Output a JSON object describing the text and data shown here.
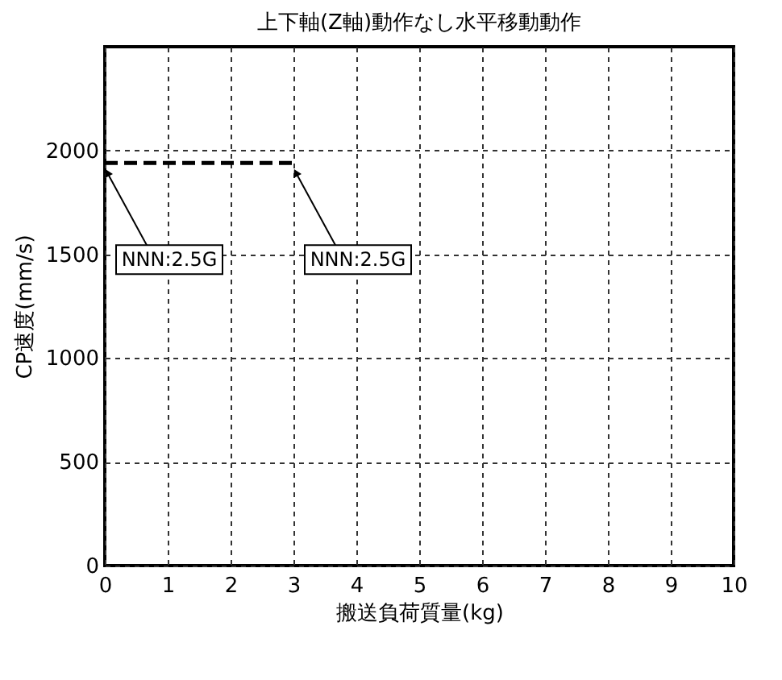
{
  "chart_data": {
    "type": "line",
    "title": "上下軸(Z軸)動作なし水平移動動作",
    "xlabel": "搬送負荷質量(kg)",
    "ylabel": "CP速度(mm/s)",
    "x": [
      0,
      3
    ],
    "series": [
      {
        "color": "#000000",
        "values": [
          1940,
          1940
        ],
        "line_style": "dashed"
      }
    ],
    "xlim": [
      0,
      10
    ],
    "xticks": [
      0,
      1,
      2,
      3,
      4,
      5,
      6,
      7,
      8,
      9,
      10
    ],
    "ylim": [
      0,
      2500
    ],
    "yticks": [
      0,
      500,
      1000,
      1500,
      2000
    ],
    "grid": true,
    "marker": "none",
    "annotations": [
      {
        "text": "NNN:2.5G",
        "x": 0,
        "y": 1940
      },
      {
        "text": "NNN:2.5G",
        "x": 3,
        "y": 1940
      }
    ]
  }
}
